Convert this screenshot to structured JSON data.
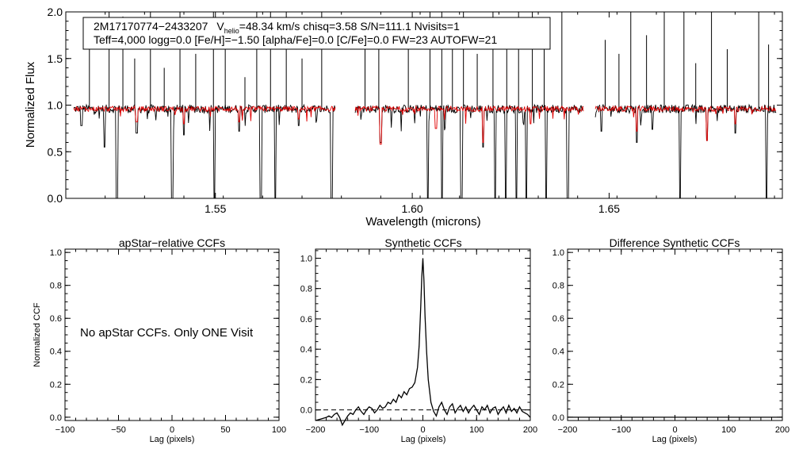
{
  "chart_data": [
    {
      "type": "line",
      "id": "spectrum",
      "xlabel": "Wavelength (microns)",
      "ylabel": "Normalized Flux",
      "xlim": [
        1.512,
        1.694
      ],
      "ylim": [
        0.0,
        2.0
      ],
      "xticks": [
        1.55,
        1.6,
        1.65
      ],
      "xtick_labels": [
        "1.55",
        "1.60",
        "1.65"
      ],
      "yticks": [
        0.0,
        0.5,
        1.0,
        1.5,
        2.0
      ],
      "ytick_labels": [
        "0.0",
        "0.5",
        "1.0",
        "1.5",
        "2.0"
      ],
      "annotation": {
        "line1_name": "2M17170774−2433207",
        "vhelio_prefix": "V",
        "vhelio_sub": "helio",
        "line1_rest": "=48.34 km/s  chisq=3.58  S/N=111.1  Nvisits=1",
        "line2": "Teff=4,000 logg=0.0 [Fe/H]=−1.50 [alpha/Fe]=0.0 [C/Fe]=0.0 FW=23 AUTOFW=21"
      },
      "chip_ranges": [
        [
          1.514,
          1.5805
        ],
        [
          1.5855,
          1.6435
        ],
        [
          1.6465,
          1.6925
        ]
      ],
      "continuum": 0.96,
      "series": [
        {
          "color": "#000000",
          "absorption_lines": [
            [
              1.516,
              0.78
            ],
            [
              1.5218,
              0.55
            ],
            [
              1.525,
              0.0
            ],
            [
              1.53,
              0.7
            ],
            [
              1.539,
              0.0
            ],
            [
              1.542,
              0.68
            ],
            [
              1.5497,
              0.0
            ],
            [
              1.556,
              0.72
            ],
            [
              1.5615,
              0.0
            ],
            [
              1.5652,
              0.0
            ],
            [
              1.5712,
              0.78
            ],
            [
              1.5795,
              0.0
            ],
            [
              1.592,
              0.6
            ],
            [
              1.604,
              0.0
            ],
            [
              1.6075,
              0.0
            ],
            [
              1.6125,
              0.0
            ],
            [
              1.618,
              0.55
            ],
            [
              1.621,
              0.0
            ],
            [
              1.6238,
              0.0
            ],
            [
              1.6265,
              0.0
            ],
            [
              1.629,
              0.0
            ],
            [
              1.634,
              0.0
            ],
            [
              1.6395,
              0.0
            ],
            [
              1.648,
              0.72
            ],
            [
              1.657,
              0.6
            ],
            [
              1.661,
              0.74
            ],
            [
              1.668,
              0.0
            ],
            [
              1.6748,
              0.62
            ],
            [
              1.682,
              0.7
            ],
            [
              1.69,
              0.0
            ]
          ],
          "emission_spikes": [
            [
              1.518,
              1.65
            ],
            [
              1.523,
              2.0
            ],
            [
              1.5265,
              1.95
            ],
            [
              1.5295,
              1.5
            ],
            [
              1.5335,
              2.0
            ],
            [
              1.537,
              1.4
            ],
            [
              1.541,
              2.0
            ],
            [
              1.545,
              1.55
            ],
            [
              1.5495,
              2.0
            ],
            [
              1.5525,
              1.85
            ],
            [
              1.5575,
              1.3
            ],
            [
              1.5605,
              2.0
            ],
            [
              1.564,
              2.0
            ],
            [
              1.568,
              2.0
            ],
            [
              1.572,
              1.5
            ],
            [
              1.577,
              2.0
            ],
            [
              1.588,
              1.65
            ],
            [
              1.5915,
              1.85
            ],
            [
              1.599,
              1.6
            ],
            [
              1.6045,
              2.0
            ],
            [
              1.6075,
              2.0
            ],
            [
              1.6102,
              1.75
            ],
            [
              1.613,
              2.0
            ],
            [
              1.6165,
              1.55
            ],
            [
              1.6205,
              2.0
            ],
            [
              1.624,
              1.85
            ],
            [
              1.627,
              2.0
            ],
            [
              1.6305,
              2.0
            ],
            [
              1.6335,
              1.7
            ],
            [
              1.638,
              2.0
            ],
            [
              1.649,
              1.7
            ],
            [
              1.6525,
              1.55
            ],
            [
              1.6555,
              2.0
            ],
            [
              1.6595,
              1.75
            ],
            [
              1.664,
              2.0
            ],
            [
              1.669,
              2.0
            ],
            [
              1.672,
              1.45
            ],
            [
              1.676,
              2.0
            ],
            [
              1.68,
              1.6
            ],
            [
              1.688,
              2.0
            ],
            [
              1.6905,
              1.65
            ]
          ]
        },
        {
          "color": "#e00000",
          "absorption_lines": [
            [
              1.53,
              0.82
            ],
            [
              1.542,
              0.8
            ],
            [
              1.556,
              0.82
            ],
            [
              1.5712,
              0.85
            ],
            [
              1.592,
              0.58
            ],
            [
              1.606,
              0.75
            ],
            [
              1.618,
              0.6
            ],
            [
              1.63,
              0.8
            ],
            [
              1.657,
              0.72
            ],
            [
              1.6748,
              0.62
            ],
            [
              1.682,
              0.8
            ]
          ]
        }
      ]
    },
    {
      "type": "line",
      "id": "apstar_ccf",
      "title": "apStar−relative CCFs",
      "xlabel": "Lag (pixels)",
      "ylabel": "Normalized CCF",
      "xlim": [
        -100,
        100
      ],
      "ylim": [
        0.0,
        1.0
      ],
      "xticks": [
        -100,
        -50,
        0,
        50,
        100
      ],
      "xtick_labels": [
        "−100",
        "−50",
        "0",
        "50",
        "100"
      ],
      "yticks": [
        0.0,
        0.2,
        0.4,
        0.6,
        0.8,
        1.0
      ],
      "ytick_labels": [
        "0.0",
        "0.2",
        "0.4",
        "0.6",
        "0.8",
        "1.0"
      ],
      "message": "No apStar CCFs.  Only ONE Visit",
      "series": []
    },
    {
      "type": "line",
      "id": "synthetic_ccf",
      "title": "Synthetic CCFs",
      "xlabel": "Lag (pixels)",
      "xlim": [
        -200,
        200
      ],
      "ylim": [
        -0.07,
        1.06
      ],
      "xticks": [
        -200,
        -100,
        0,
        100,
        200
      ],
      "xtick_labels": [
        "−200",
        "−100",
        "0",
        "100",
        "200"
      ],
      "yticks": [
        0.0,
        0.2,
        0.4,
        0.6,
        0.8,
        1.0
      ],
      "ytick_labels": [
        "0.0",
        "0.2",
        "0.4",
        "0.6",
        "0.8",
        "1.0"
      ],
      "reference_line": 0.0,
      "series": [
        {
          "color": "#000000",
          "x": [
            -200,
            -190,
            -180,
            -175,
            -170,
            -165,
            -160,
            -155,
            -150,
            -145,
            -140,
            -135,
            -130,
            -125,
            -120,
            -115,
            -110,
            -105,
            -100,
            -95,
            -90,
            -85,
            -80,
            -75,
            -70,
            -65,
            -60,
            -55,
            -50,
            -45,
            -40,
            -35,
            -30,
            -25,
            -20,
            -15,
            -10,
            -7,
            -4,
            -2,
            0,
            2,
            4,
            7,
            10,
            15,
            20,
            25,
            30,
            35,
            40,
            45,
            50,
            55,
            60,
            65,
            70,
            75,
            80,
            85,
            90,
            95,
            100,
            105,
            110,
            115,
            120,
            125,
            130,
            135,
            140,
            145,
            150,
            155,
            160,
            165,
            170,
            175,
            180,
            185,
            190,
            195,
            200
          ],
          "y": [
            -0.07,
            -0.06,
            -0.05,
            -0.04,
            -0.05,
            -0.03,
            -0.02,
            -0.05,
            -0.1,
            -0.07,
            -0.04,
            -0.02,
            -0.03,
            0.0,
            0.02,
            -0.01,
            -0.03,
            0.0,
            0.02,
            0.01,
            -0.02,
            0.0,
            0.03,
            0.01,
            0.02,
            0.05,
            0.04,
            0.07,
            0.05,
            0.1,
            0.08,
            0.12,
            0.1,
            0.14,
            0.15,
            0.18,
            0.28,
            0.42,
            0.68,
            0.88,
            1.0,
            0.85,
            0.62,
            0.38,
            0.2,
            0.05,
            -0.01,
            -0.04,
            0.02,
            0.05,
            0.0,
            -0.03,
            0.02,
            0.04,
            -0.02,
            0.01,
            0.03,
            -0.01,
            0.02,
            -0.02,
            0.01,
            0.03,
            0.0,
            -0.03,
            0.02,
            0.0,
            0.03,
            -0.02,
            0.01,
            0.02,
            -0.03,
            0.0,
            0.02,
            -0.02,
            0.03,
            -0.01,
            0.01,
            -0.02,
            0.02,
            -0.01,
            -0.02,
            -0.03,
            -0.05
          ]
        }
      ]
    },
    {
      "type": "line",
      "id": "difference_ccf",
      "title": "Difference Synthetic CCFs",
      "xlabel": "Lag (pixels)",
      "xlim": [
        -200,
        200
      ],
      "ylim": [
        0.0,
        1.0
      ],
      "xticks": [
        -200,
        -100,
        0,
        100,
        200
      ],
      "xtick_labels": [
        "−200",
        "−100",
        "0",
        "100",
        "200"
      ],
      "yticks": [
        0.0,
        0.2,
        0.4,
        0.6,
        0.8,
        1.0
      ],
      "ytick_labels": [
        "0.0",
        "0.2",
        "0.4",
        "0.6",
        "0.8",
        "1.0"
      ],
      "series": [
        {
          "color": "#000000",
          "x": [
            -200,
            200
          ],
          "y": [
            0.0,
            0.0
          ]
        }
      ]
    }
  ]
}
